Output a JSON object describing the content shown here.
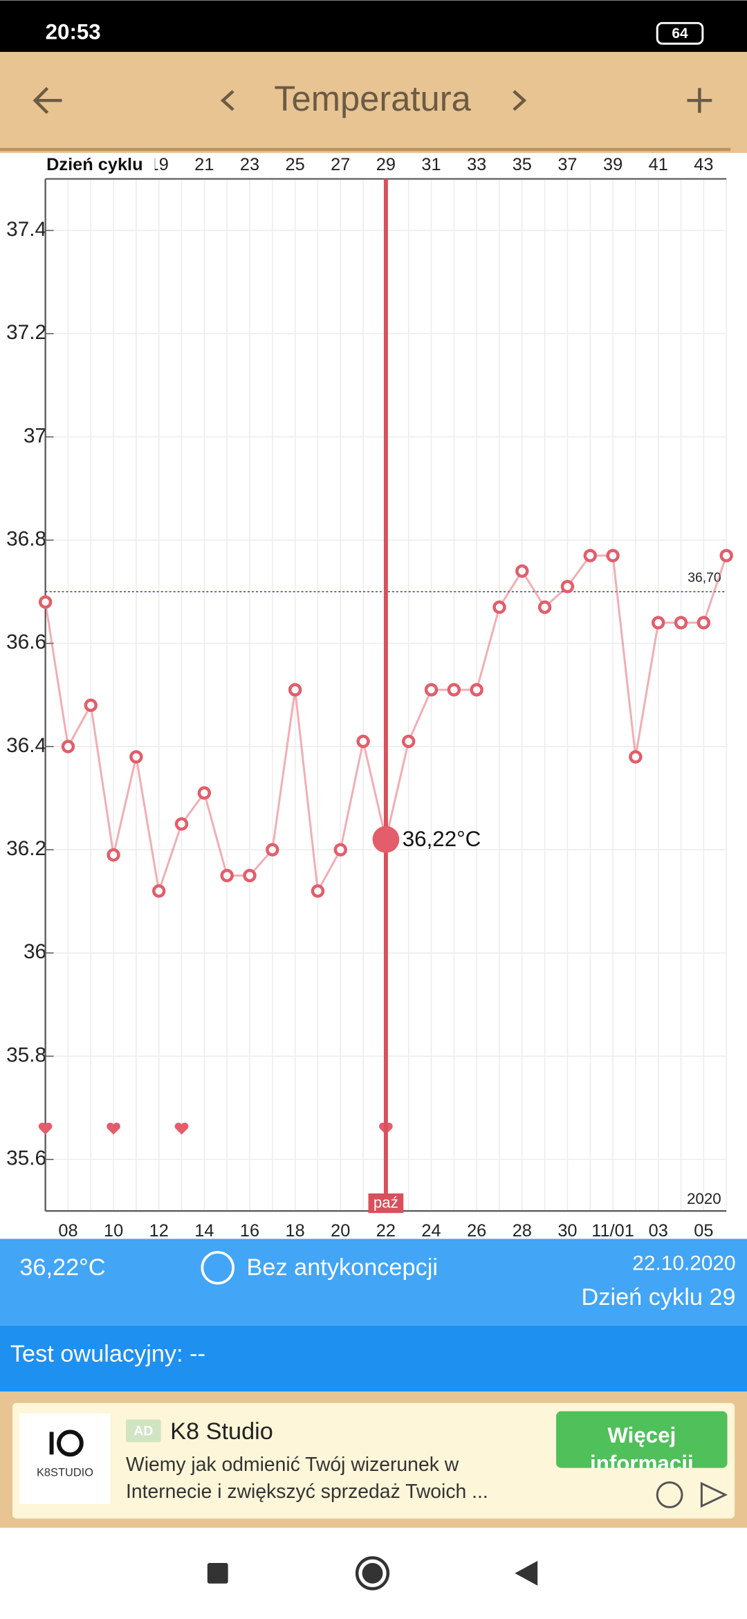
{
  "status_bar": {
    "time": "20:53",
    "battery": "64"
  },
  "header": {
    "title": "Temperatura"
  },
  "chart_data": {
    "type": "line",
    "top_axis_title": "Dzień cyklu",
    "categories": [
      null,
      "08",
      null,
      "10",
      null,
      "12",
      null,
      "14",
      null,
      "16",
      null,
      "18",
      null,
      "20",
      null,
      "22",
      null,
      "24",
      null,
      "26",
      null,
      "28",
      null,
      "30",
      null,
      "11/01",
      null,
      "03",
      null,
      "05",
      null
    ],
    "top_labels": [
      null,
      null,
      null,
      null,
      null,
      "19",
      null,
      "21",
      null,
      "23",
      null,
      "25",
      null,
      "27",
      null,
      "29",
      null,
      "31",
      null,
      "33",
      null,
      "35",
      null,
      "37",
      null,
      "39",
      null,
      "41",
      null,
      "43",
      null
    ],
    "series": [
      {
        "color": "#e35d6a",
        "values": [
          36.68,
          36.4,
          36.48,
          36.19,
          36.38,
          36.12,
          36.25,
          36.31,
          36.15,
          36.15,
          36.2,
          36.51,
          36.12,
          36.2,
          36.41,
          36.22,
          36.41,
          36.51,
          36.51,
          36.51,
          36.67,
          36.74,
          36.67,
          36.71,
          36.77,
          36.77,
          36.38,
          36.64,
          36.64,
          36.64,
          36.77
        ],
        "value_labels": [
          null,
          null,
          null,
          null,
          null,
          null,
          null,
          null,
          null,
          null,
          null,
          null,
          null,
          null,
          null,
          "36,22°C",
          null,
          null,
          null,
          null,
          null,
          null,
          null,
          null,
          null,
          null,
          null,
          null,
          null,
          null,
          null
        ]
      }
    ],
    "ylim": [
      35.5,
      37.5
    ],
    "yticks": [
      35.6,
      35.8,
      36,
      36.2,
      36.4,
      36.6,
      36.8,
      37,
      37.2,
      37.4
    ],
    "reference_line": {
      "value": 36.7,
      "label": "36,70"
    },
    "month_label": "paź",
    "year_label": "2020",
    "grid": true
  },
  "info": {
    "temperature": "36,22°C",
    "contraception": "Bez antykoncepcji",
    "date": "22.10.2020",
    "cycle_day": "Dzień cyklu 29"
  },
  "ovulation_test": "Test owulacyjny: --",
  "ad": {
    "logo": "K8STUDIO",
    "badge": "AD",
    "title": "K8 Studio",
    "line1": "Wiemy jak odmienić Twój wizerunek w",
    "line2": "Internecie i zwiększyć sprzedaż Twoich ...",
    "button": "Więcej",
    "button_line2": "informacji"
  }
}
